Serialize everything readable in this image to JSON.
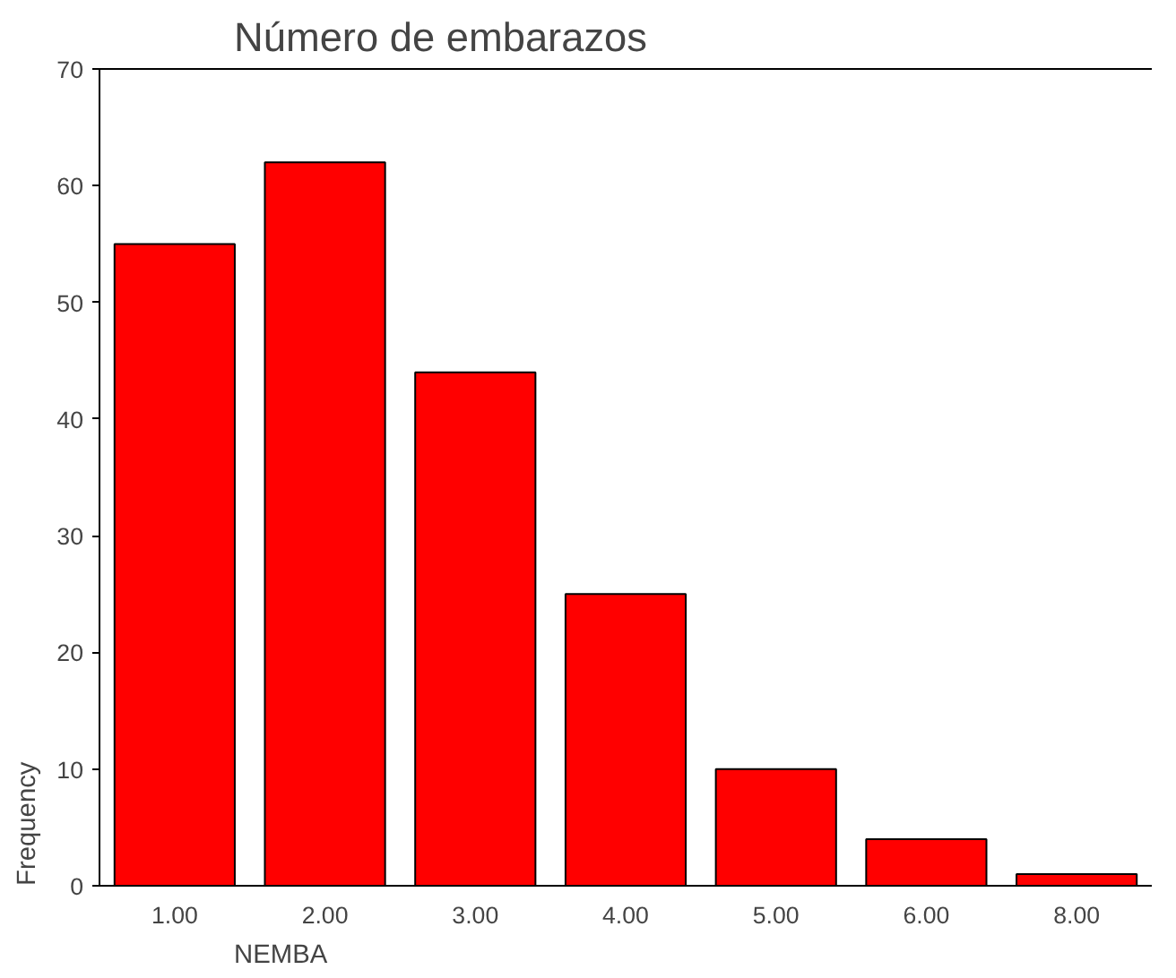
{
  "chart_data": {
    "type": "bar",
    "title": "Número de embarazos",
    "xlabel": "NEMBA",
    "ylabel": "Frequency",
    "categories": [
      "1.00",
      "2.00",
      "3.00",
      "4.00",
      "5.00",
      "6.00",
      "8.00"
    ],
    "values": [
      55,
      62,
      44,
      25,
      10,
      4,
      1
    ],
    "color": "#ff0000",
    "ylim": [
      0,
      70
    ],
    "yticks": [
      0,
      10,
      20,
      30,
      40,
      50,
      60,
      70
    ],
    "grid": false
  }
}
